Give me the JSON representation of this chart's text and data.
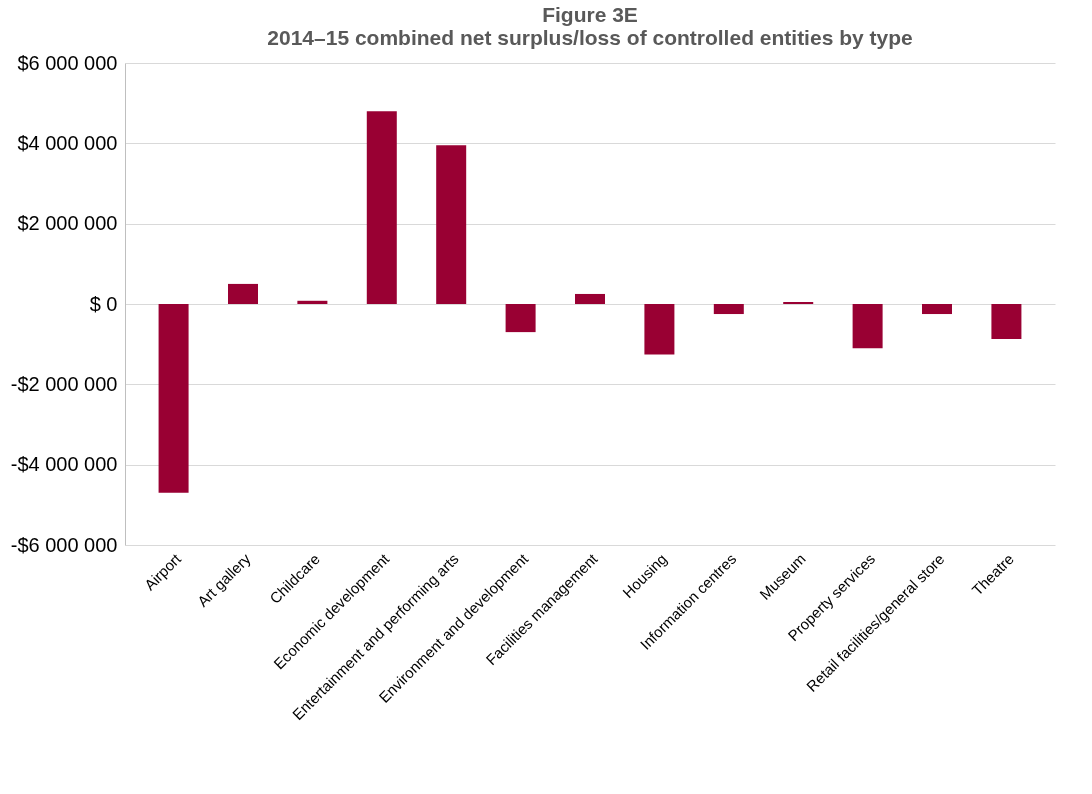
{
  "chart_data": {
    "type": "bar",
    "title": "Figure 3E",
    "subtitle": "2014–15 combined net surplus/loss of controlled entities by type",
    "categories": [
      "Airport",
      "Art gallery",
      "Childcare",
      "Economic development",
      "Entertainment  and performing arts",
      "Environment and development",
      "Facilities management",
      "Housing",
      "Information centres",
      "Museum",
      "Property services",
      "Retail facilities/general store",
      "Theatre"
    ],
    "values": [
      -4700000,
      500000,
      80000,
      4800000,
      3950000,
      -700000,
      250000,
      -1260000,
      -250000,
      50000,
      -1100000,
      -250000,
      -870000
    ],
    "color": "#990033",
    "ylim": [
      -6000000,
      6000000
    ],
    "yticks": [
      {
        "value": -6000000,
        "label": "-$6 000 000"
      },
      {
        "value": -4000000,
        "label": "-$4 000 000"
      },
      {
        "value": -2000000,
        "label": "-$2 000 000"
      },
      {
        "value": 0,
        "label": "$  0"
      },
      {
        "value": 2000000,
        "label": "$2 000 000"
      },
      {
        "value": 4000000,
        "label": "$4 000 000"
      },
      {
        "value": 6000000,
        "label": "$6 000 000"
      }
    ],
    "grid": "y"
  }
}
